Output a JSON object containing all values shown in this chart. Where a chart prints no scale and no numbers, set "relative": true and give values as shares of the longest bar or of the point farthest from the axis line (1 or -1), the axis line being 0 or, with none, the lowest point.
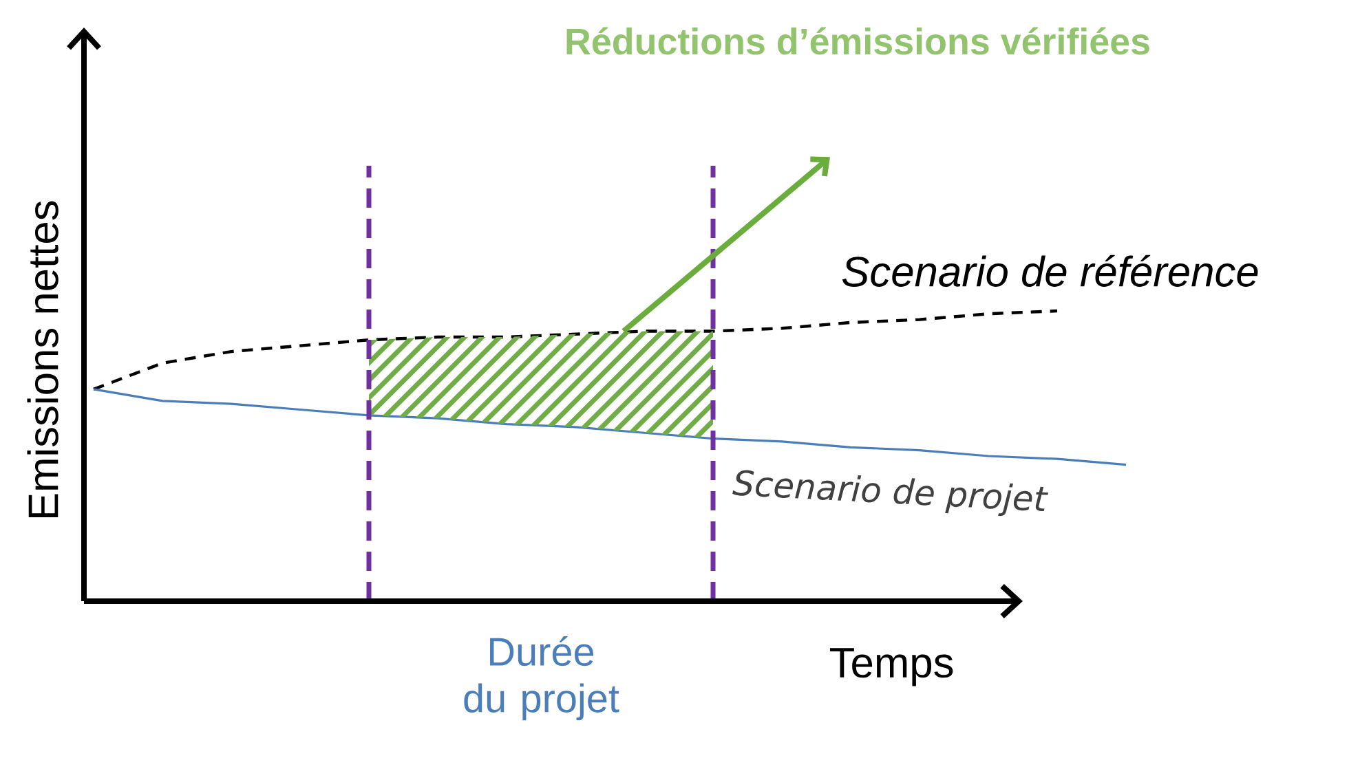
{
  "chart_data": {
    "type": "line",
    "relative": true,
    "xlabel": "Temps",
    "ylabel": "Emissions nettes",
    "marker": "none",
    "categories": [
      null,
      null,
      null,
      null,
      null,
      null,
      null,
      null,
      null,
      null,
      null,
      null,
      null,
      null,
      null,
      null
    ],
    "series": [
      {
        "name": "Scenario de référence",
        "color": "#000000",
        "line_style": "dashed",
        "values": [
          0.73,
          0.82,
          0.86,
          0.88,
          0.9,
          0.91,
          0.91,
          0.92,
          0.93,
          0.93,
          0.94,
          0.96,
          0.97,
          0.99,
          1.0,
          null
        ]
      },
      {
        "name": "Scenario de projet",
        "color": "#4a7ebb",
        "line_style": "solid",
        "values": [
          0.73,
          0.69,
          0.68,
          0.66,
          0.64,
          0.63,
          0.61,
          0.6,
          0.58,
          0.56,
          0.55,
          0.53,
          0.52,
          0.5,
          0.49,
          0.47
        ]
      }
    ],
    "annotations": [
      "Réductions d’émissions vérifiées",
      "Durée du projet"
    ]
  }
}
